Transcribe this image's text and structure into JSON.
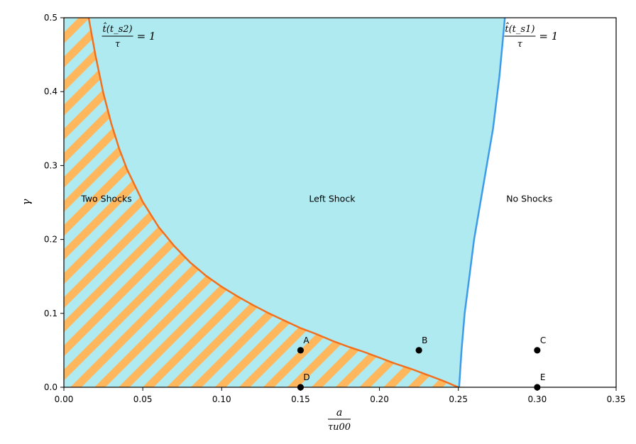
{
  "chart_data": {
    "type": "area",
    "title": "",
    "xlabel": {
      "numerator": "a",
      "denominator": "τu00"
    },
    "ylabel": "γ",
    "xlim": [
      0.0,
      0.35
    ],
    "ylim": [
      0.0,
      0.5
    ],
    "xticks": [
      "0.00",
      "0.05",
      "0.10",
      "0.15",
      "0.20",
      "0.25",
      "0.30",
      "0.35"
    ],
    "yticks": [
      "0.0",
      "0.1",
      "0.2",
      "0.3",
      "0.4",
      "0.5"
    ],
    "grid": false,
    "colors": {
      "left_shock_fill": "#aeeaf0",
      "hatch_stripe": "#ffb75e",
      "curve_s2": "#f26f1e",
      "curve_s1": "#3d9be9",
      "point": "#000000"
    },
    "regions": [
      {
        "name": "Two Shocks",
        "label": "Two Shocks",
        "label_at": [
          0.027,
          0.255
        ]
      },
      {
        "name": "Left Shock",
        "label": "Left Shock",
        "label_at": [
          0.17,
          0.255
        ]
      },
      {
        "name": "No Shocks",
        "label": "No Shocks",
        "label_at": [
          0.295,
          0.255
        ]
      }
    ],
    "curves": [
      {
        "name": "s2",
        "color": "#f26f1e",
        "label": {
          "num": "t̂(t_s2)",
          "den": "τ",
          "rhs": "= 1"
        },
        "label_at": [
          0.025,
          0.475
        ],
        "x": [
          0.0157,
          0.02,
          0.025,
          0.03,
          0.035,
          0.04,
          0.05,
          0.06,
          0.07,
          0.08,
          0.09,
          0.1,
          0.11,
          0.12,
          0.13,
          0.14,
          0.15,
          0.16,
          0.17,
          0.18,
          0.19,
          0.2,
          0.21,
          0.22,
          0.23,
          0.24,
          0.25
        ],
        "y": [
          0.5,
          0.449,
          0.398,
          0.357,
          0.323,
          0.295,
          0.251,
          0.217,
          0.191,
          0.169,
          0.151,
          0.136,
          0.123,
          0.111,
          0.1,
          0.09,
          0.08,
          0.072,
          0.063,
          0.055,
          0.048,
          0.04,
          0.032,
          0.025,
          0.017,
          0.009,
          0.0
        ]
      },
      {
        "name": "s1",
        "color": "#3d9be9",
        "label": {
          "num": "t̂(t_s1)",
          "den": "τ",
          "rhs": "= 1"
        },
        "label_at": [
          0.28,
          0.475
        ],
        "x": [
          0.2505,
          0.252,
          0.254,
          0.257,
          0.26,
          0.264,
          0.268,
          0.272,
          0.276,
          0.2795
        ],
        "y": [
          0.0,
          0.05,
          0.1,
          0.15,
          0.2,
          0.25,
          0.3,
          0.35,
          0.42,
          0.5
        ]
      }
    ],
    "points": [
      {
        "label": "A",
        "x": 0.15,
        "y": 0.05
      },
      {
        "label": "B",
        "x": 0.225,
        "y": 0.05
      },
      {
        "label": "C",
        "x": 0.3,
        "y": 0.05
      },
      {
        "label": "D",
        "x": 0.15,
        "y": 0.0
      },
      {
        "label": "E",
        "x": 0.3,
        "y": 0.0
      }
    ]
  }
}
